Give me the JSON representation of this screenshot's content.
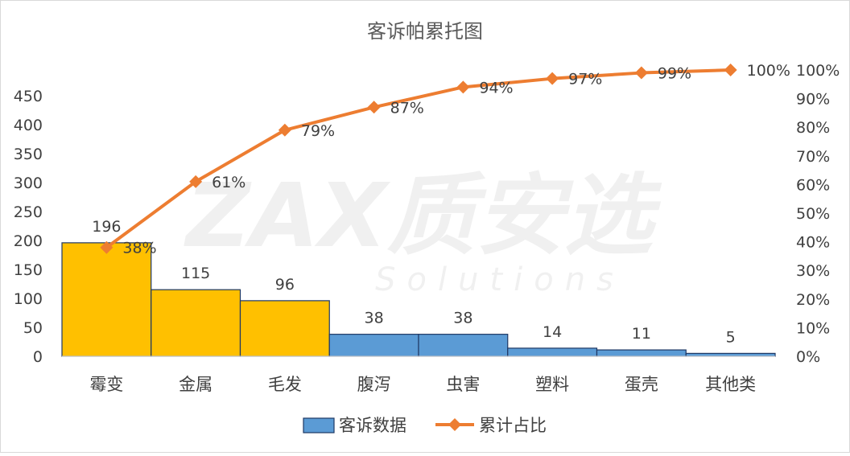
{
  "chart_data": {
    "type": "bar",
    "title": "客诉帕累托图",
    "categories": [
      "霉变",
      "金属",
      "毛发",
      "腹泻",
      "虫害",
      "塑料",
      "蛋壳",
      "其他类"
    ],
    "series": [
      {
        "name": "客诉数据",
        "type": "bar",
        "axis": "left",
        "values": [
          196,
          115,
          96,
          38,
          38,
          14,
          11,
          5
        ],
        "colors": [
          "#FFC000",
          "#FFC000",
          "#FFC000",
          "#5B9BD5",
          "#5B9BD5",
          "#5B9BD5",
          "#5B9BD5",
          "#5B9BD5"
        ],
        "border_color": "#1F3864"
      },
      {
        "name": "累计占比",
        "type": "line",
        "axis": "right",
        "values": [
          38,
          61,
          79,
          87,
          94,
          97,
          99,
          100
        ],
        "labels": [
          "38%",
          "61%",
          "79%",
          "87%",
          "94%",
          "97%",
          "99%",
          "100%"
        ],
        "color": "#ED7D31",
        "marker": "diamond"
      }
    ],
    "y_left": {
      "min": 0,
      "max": 500,
      "ticks": [
        0,
        50,
        100,
        150,
        200,
        250,
        300,
        350,
        400,
        450
      ]
    },
    "y_right": {
      "min": 0,
      "max": 100,
      "ticks": [
        0,
        10,
        20,
        30,
        40,
        50,
        60,
        70,
        80,
        90,
        100
      ],
      "tick_labels": [
        "0%",
        "10%",
        "20%",
        "30%",
        "40%",
        "50%",
        "60%",
        "70%",
        "80%",
        "90%",
        "100%"
      ]
    },
    "grid": false,
    "legend": "bottom"
  },
  "watermark": {
    "main": "ZAX质安选",
    "sub": "Solutions"
  }
}
